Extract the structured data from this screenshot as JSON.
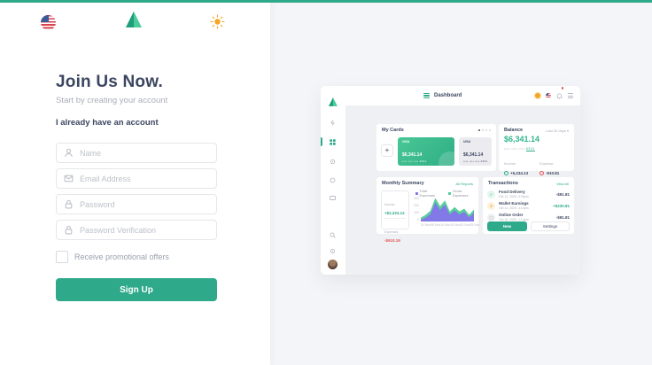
{
  "colors": {
    "accent_green": "#2ea98a",
    "dark_text": "#3b4660",
    "muted_text": "#a9aeb9",
    "right_bg": "#f4f5f8",
    "chart_purple": "#8278E8",
    "chart_green": "#57CE9B",
    "sun_orange": "#f5a623",
    "danger_red": "#e25555"
  },
  "icons": {
    "language": "us-flag-icon",
    "brand": "triangle-logo",
    "theme": "sun-icon",
    "name_field": "person-icon",
    "email_field": "envelope-icon",
    "password_field": "lock-icon"
  },
  "signup": {
    "title": "Join Us Now.",
    "subtitle": "Start by creating your account",
    "login_link": "I already have an account",
    "fields": [
      {
        "icon": "person-icon",
        "placeholder": "Name"
      },
      {
        "icon": "envelope-icon",
        "placeholder": "Email Address"
      },
      {
        "icon": "lock-icon",
        "placeholder": "Password"
      },
      {
        "icon": "lock-icon",
        "placeholder": "Password Verification"
      }
    ],
    "checkbox_label": "Receive promotional offers",
    "submit_label": "Sign Up"
  },
  "preview": {
    "topbar": {
      "title": "Dashboard"
    },
    "my_cards": {
      "title": "My Cards",
      "add_label": "+",
      "cards": [
        {
          "brand": "VISA",
          "amount": "$6,341.14",
          "masked": "•••• •••• •••• 4321",
          "style": "green"
        },
        {
          "brand": "VISA",
          "amount": "$6,341.14",
          "masked": "•••• •••• •••• 4321",
          "style": "gray"
        }
      ]
    },
    "balance": {
      "title": "Balance",
      "range_label": "Last 30 days ▾",
      "amount": "$6,341.14",
      "masked_number": "•••• •••• •••• ",
      "masked_last4": "6341",
      "income_label": "Income",
      "income_value": "+5,234.13",
      "expense_label": "Expense",
      "expense_value": "-910.81"
    },
    "monthly_summary": {
      "title": "Monthly Summary",
      "link_label": "All Reports",
      "income_label": "Income",
      "income_value": "+$2,324.12",
      "expenses_label": "Expenses",
      "expenses_value": "-$910.19"
    },
    "transactions": {
      "title": "Transactions",
      "link_label": "View All",
      "items": [
        {
          "name": "Food Delivery",
          "date": "Oct 12, 2020, 3:30pm",
          "amount": "-$91.81",
          "glyph": "✓",
          "tone": "green"
        },
        {
          "name": "Wallet Earnings",
          "date": "Oct 14, 2020, 4:13pm",
          "amount": "+$230.81",
          "glyph": "$",
          "tone": "amber"
        },
        {
          "name": "Online Order",
          "date": "Oct 16, 2020, 1:14pm",
          "amount": "-$91.81",
          "glyph": "▢",
          "tone": "gray"
        }
      ],
      "primary_button": "New",
      "secondary_button": "Settings"
    }
  },
  "chart_data": {
    "type": "area",
    "title": "Monthly Summary",
    "x": [
      "01 Nov",
      "05 Nov",
      "10 Nov",
      "15 Nov",
      "20 Nov",
      "25 Nov"
    ],
    "y_ticks": [
      "300",
      "200",
      "100",
      "0"
    ],
    "ylim": [
      0,
      300
    ],
    "legend_position": "top",
    "grid": false,
    "series": [
      {
        "name": "Total Expenses",
        "color": "#8278E8",
        "values": [
          20,
          45,
          90,
          230,
          140,
          205,
          85,
          135,
          85,
          115,
          50,
          105
        ]
      },
      {
        "name": "Gross Expenses",
        "color": "#57CE9B",
        "values": [
          45,
          80,
          130,
          285,
          185,
          255,
          120,
          175,
          120,
          155,
          80,
          145
        ]
      }
    ]
  }
}
